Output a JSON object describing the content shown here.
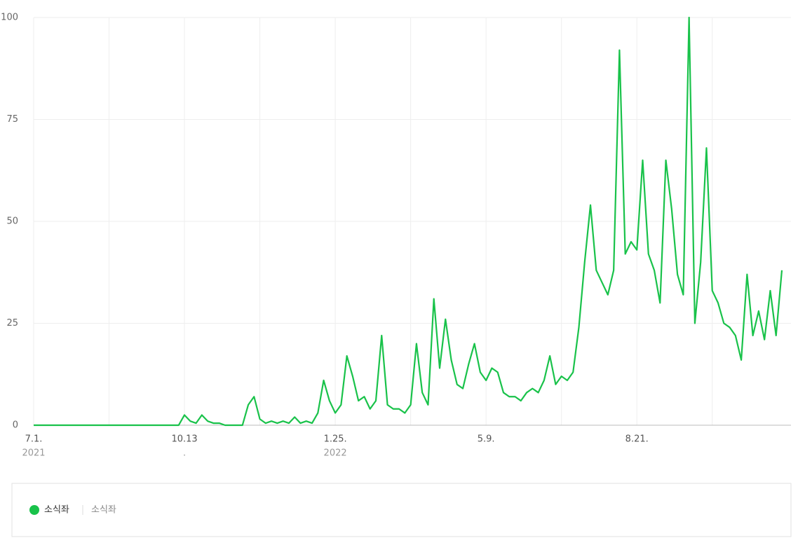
{
  "chart_data": {
    "type": "line",
    "xlim": [
      0,
      129
    ],
    "xgrid": [
      0,
      13,
      26,
      39,
      52,
      65,
      78,
      91,
      104,
      117
    ],
    "xticks": [
      {
        "value": 0,
        "label": "7.1.",
        "sublabel": "2021"
      },
      {
        "value": 26,
        "label": "10.13",
        "sublabel": "."
      },
      {
        "value": 52,
        "label": "1.25.",
        "sublabel": "2022"
      },
      {
        "value": 78,
        "label": "5.9."
      },
      {
        "value": 104,
        "label": "8.21."
      }
    ],
    "ylim": [
      0,
      100
    ],
    "yticks": [
      0,
      25,
      50,
      75,
      100
    ],
    "grid": true,
    "series": [
      {
        "name": "소식좌",
        "keywords": "소식좌",
        "color": "#19c24a",
        "values": [
          0,
          0,
          0,
          0,
          0,
          0,
          0,
          0,
          0,
          0,
          0,
          0,
          0,
          0,
          0,
          0,
          0,
          0,
          0,
          0,
          0,
          0,
          0,
          0,
          0,
          0,
          2.5,
          1,
          0.5,
          2.5,
          1,
          0.5,
          0.5,
          0,
          0,
          0,
          0,
          5,
          7,
          1.5,
          0.5,
          1,
          0.5,
          1,
          0.5,
          2,
          0.5,
          1,
          0.5,
          3,
          11,
          6,
          3,
          5,
          17,
          12,
          6,
          7,
          4,
          6,
          22,
          5,
          4,
          4,
          3,
          5,
          20,
          8,
          5,
          31,
          14,
          26,
          16,
          10,
          9,
          15,
          20,
          13,
          11,
          14,
          13,
          8,
          7,
          7,
          6,
          8,
          9,
          8,
          11,
          17,
          10,
          12,
          11,
          13,
          24,
          40,
          54,
          38,
          35,
          32,
          38,
          92,
          42,
          45,
          43,
          65,
          42,
          38,
          30,
          65,
          53,
          37,
          32,
          100,
          25,
          40,
          68,
          33,
          30,
          25,
          24,
          22,
          16,
          37,
          22,
          28,
          21,
          33,
          22,
          38
        ]
      }
    ]
  }
}
